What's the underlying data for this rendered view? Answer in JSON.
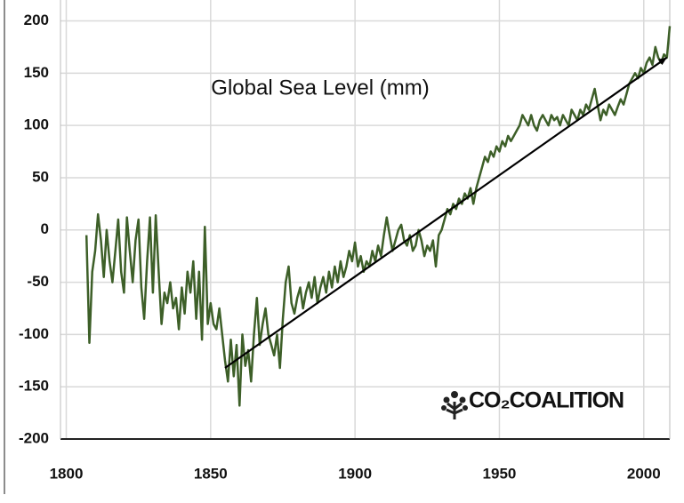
{
  "chart_data": {
    "type": "line",
    "title": "Global Sea Level (mm)",
    "logo": "CO₂COALITION",
    "xlim": [
      1798,
      2009
    ],
    "xticks": [
      1800,
      1850,
      1900,
      1950,
      2000
    ],
    "ylim": [
      -200,
      220
    ],
    "yticks": [
      -200,
      -150,
      -100,
      -50,
      0,
      50,
      100,
      150,
      200
    ],
    "grid": true,
    "series": [
      {
        "color": "#3d5f28",
        "x": [
          1807,
          1808,
          1809,
          1810,
          1811,
          1812,
          1813,
          1814,
          1815,
          1816,
          1817,
          1818,
          1819,
          1820,
          1821,
          1822,
          1823,
          1824,
          1825,
          1826,
          1827,
          1828,
          1829,
          1830,
          1831,
          1832,
          1833,
          1834,
          1835,
          1836,
          1837,
          1838,
          1839,
          1840,
          1841,
          1842,
          1843,
          1844,
          1845,
          1846,
          1847,
          1848,
          1849,
          1850,
          1851,
          1852,
          1853,
          1854,
          1855,
          1856,
          1857,
          1858,
          1859,
          1860,
          1861,
          1862,
          1863,
          1864,
          1865,
          1866,
          1867,
          1868,
          1869,
          1870,
          1871,
          1872,
          1873,
          1874,
          1875,
          1876,
          1877,
          1878,
          1879,
          1880,
          1881,
          1882,
          1883,
          1884,
          1885,
          1886,
          1887,
          1888,
          1889,
          1890,
          1891,
          1892,
          1893,
          1894,
          1895,
          1896,
          1897,
          1898,
          1899,
          1900,
          1901,
          1902,
          1903,
          1904,
          1905,
          1906,
          1907,
          1908,
          1909,
          1910,
          1911,
          1912,
          1913,
          1914,
          1915,
          1916,
          1917,
          1918,
          1919,
          1920,
          1921,
          1922,
          1923,
          1924,
          1925,
          1926,
          1927,
          1928,
          1929,
          1930,
          1931,
          1932,
          1933,
          1934,
          1935,
          1936,
          1937,
          1938,
          1939,
          1940,
          1941,
          1942,
          1943,
          1944,
          1945,
          1946,
          1947,
          1948,
          1949,
          1950,
          1951,
          1952,
          1953,
          1954,
          1955,
          1956,
          1957,
          1958,
          1959,
          1960,
          1961,
          1962,
          1963,
          1964,
          1965,
          1966,
          1967,
          1968,
          1969,
          1970,
          1971,
          1972,
          1973,
          1974,
          1975,
          1976,
          1977,
          1978,
          1979,
          1980,
          1981,
          1982,
          1983,
          1984,
          1985,
          1986,
          1987,
          1988,
          1989,
          1990,
          1991,
          1992,
          1993,
          1994,
          1995,
          1996,
          1997,
          1998,
          1999,
          2000,
          2001,
          2002,
          2003,
          2004,
          2005,
          2006,
          2007,
          2008,
          2009
        ],
        "values": [
          -5,
          -108,
          -40,
          -20,
          15,
          -10,
          -45,
          0,
          -30,
          -50,
          -20,
          10,
          -40,
          -60,
          12,
          -20,
          -50,
          -10,
          10,
          -55,
          -85,
          -30,
          12,
          -60,
          14,
          -40,
          -90,
          -60,
          -70,
          -50,
          -75,
          -65,
          -95,
          -55,
          -80,
          -40,
          -60,
          -30,
          -85,
          -40,
          -105,
          3,
          -90,
          -70,
          -90,
          -95,
          -75,
          -100,
          -125,
          -145,
          -105,
          -140,
          -110,
          -168,
          -100,
          -130,
          -115,
          -145,
          -100,
          -65,
          -110,
          -90,
          -75,
          -100,
          -110,
          -120,
          -100,
          -132,
          -85,
          -50,
          -35,
          -70,
          -80,
          -65,
          -55,
          -75,
          -60,
          -50,
          -65,
          -45,
          -70,
          -55,
          -45,
          -60,
          -40,
          -55,
          -35,
          -50,
          -30,
          -45,
          -35,
          -20,
          -30,
          -12,
          -35,
          -25,
          -40,
          -30,
          -35,
          -20,
          -30,
          -15,
          -25,
          -5,
          12,
          -5,
          -20,
          -10,
          0,
          5,
          -10,
          -15,
          -5,
          -20,
          -15,
          0,
          -10,
          -25,
          -15,
          -20,
          -10,
          -35,
          -5,
          0,
          10,
          20,
          15,
          25,
          20,
          30,
          25,
          35,
          30,
          40,
          25,
          40,
          50,
          60,
          70,
          65,
          75,
          70,
          80,
          75,
          85,
          80,
          90,
          85,
          90,
          95,
          100,
          110,
          105,
          100,
          110,
          100,
          95,
          105,
          110,
          105,
          100,
          110,
          105,
          108,
          100,
          110,
          105,
          100,
          115,
          110,
          105,
          115,
          110,
          120,
          115,
          125,
          135,
          120,
          105,
          115,
          110,
          120,
          115,
          110,
          118,
          125,
          120,
          130,
          140,
          145,
          150,
          145,
          155,
          150,
          160,
          165,
          158,
          175,
          165,
          160,
          168,
          165,
          195
        ]
      },
      {
        "color": "#000000",
        "x": [
          1855,
          2008
        ],
        "values": [
          -132,
          165
        ]
      }
    ]
  }
}
